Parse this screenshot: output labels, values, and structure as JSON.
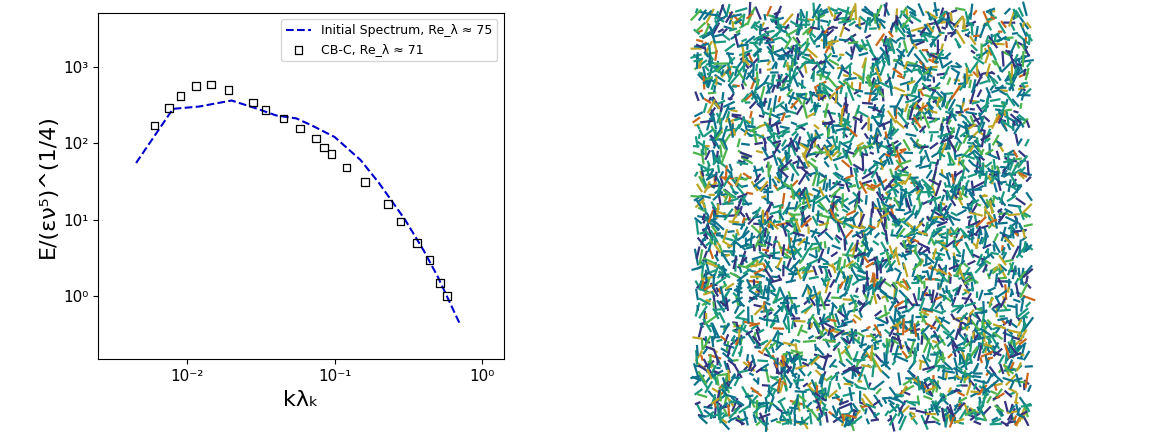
{
  "chart_data": {
    "type": "line",
    "xlabel": "kλₖ",
    "ylabel": "E/(εν⁵)^(1/4)",
    "log": true,
    "grid": false,
    "legend": "upper right",
    "xlim": [
      0.0025,
      1.4
    ],
    "ylim": [
      0.15,
      5000
    ],
    "xticks": [
      {
        "value": 0.01,
        "label": "10⁻²"
      },
      {
        "value": 0.1,
        "label": "10⁻¹"
      },
      {
        "value": 1,
        "label": "10⁰"
      }
    ],
    "yticks": [
      {
        "value": 1,
        "label": "10⁰"
      },
      {
        "value": 10,
        "label": "10¹"
      },
      {
        "value": 100,
        "label": "10²"
      },
      {
        "value": 1000,
        "label": "10³"
      }
    ],
    "series": [
      {
        "name": "Initial Spectrum, Re_λ ≈ 75",
        "type": "line",
        "color": "#0000cc",
        "line_style": "dashed",
        "x": [
          0.0045,
          0.008,
          0.012,
          0.02,
          0.03,
          0.04,
          0.055,
          0.07,
          0.1,
          0.15,
          0.2,
          0.3,
          0.4,
          0.5,
          0.7
        ],
        "values": [
          55,
          280,
          300,
          360,
          280,
          230,
          210,
          170,
          120,
          60,
          30,
          10,
          4,
          1.8,
          0.45
        ]
      },
      {
        "name": "CB-C, Re_λ ≈ 71",
        "type": "scatter",
        "color": "#000000",
        "marker": "square",
        "x": [
          0.006,
          0.0075,
          0.009,
          0.0115,
          0.0145,
          0.019,
          0.028,
          0.034,
          0.045,
          0.058,
          0.075,
          0.085,
          0.095,
          0.12,
          0.16,
          0.23,
          0.28,
          0.36,
          0.44,
          0.52,
          0.58
        ],
        "values": [
          170,
          290,
          410,
          560,
          580,
          490,
          340,
          270,
          210,
          155,
          115,
          88,
          72,
          48,
          31,
          16,
          9.5,
          5,
          3,
          1.5,
          1.0
        ]
      }
    ]
  }
}
